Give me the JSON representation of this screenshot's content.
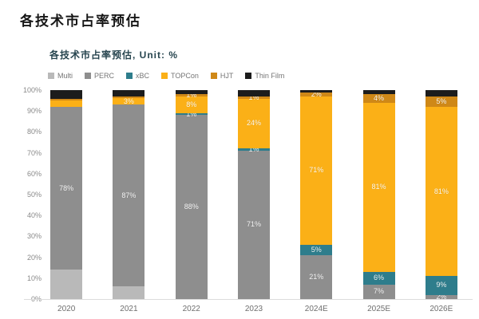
{
  "page": {
    "title": "各技术市占率预估"
  },
  "chart": {
    "subtitle": "各技术市占率预估, Unit: %"
  },
  "chart_data": {
    "type": "bar",
    "subtype": "stacked-percentage",
    "title": "各技术市占率预估, Unit: %",
    "unit": "%",
    "legend_position": "top",
    "grid": false,
    "ylim": [
      0,
      100
    ],
    "yticks": [
      "0%",
      "10%",
      "20%",
      "30%",
      "40%",
      "50%",
      "60%",
      "70%",
      "80%",
      "90%",
      "100%"
    ],
    "categories": [
      "2020",
      "2021",
      "2022",
      "2023",
      "2024E",
      "2025E",
      "2026E"
    ],
    "series": [
      {
        "name": "Multi",
        "color": "#b9b9b9",
        "values": [
          14,
          6,
          0,
          0,
          0,
          0,
          0
        ],
        "labels": [
          "",
          "",
          "",
          "",
          "",
          "",
          ""
        ]
      },
      {
        "name": "PERC",
        "color": "#8e8e8e",
        "values": [
          78,
          87,
          88,
          71,
          21,
          7,
          2
        ],
        "labels": [
          "78%",
          "87%",
          "88%",
          "71%",
          "21%",
          "7%",
          "2%"
        ]
      },
      {
        "name": "xBC",
        "color": "#2e7d8c",
        "values": [
          0,
          0,
          1,
          1,
          5,
          6,
          9
        ],
        "labels": [
          "",
          "",
          "1%",
          "1%",
          "5%",
          "6%",
          "9%"
        ]
      },
      {
        "name": "TOPCon",
        "color": "#fbb017",
        "values": [
          3,
          3,
          8,
          24,
          71,
          81,
          81
        ],
        "labels": [
          "",
          "3%",
          "8%",
          "24%",
          "71%",
          "81%",
          "81%"
        ]
      },
      {
        "name": "HJT",
        "color": "#cf8817",
        "values": [
          1,
          1,
          1,
          1,
          2,
          4,
          5
        ],
        "labels": [
          "",
          "",
          "1%",
          "1%",
          "2%",
          "4%",
          "5%"
        ]
      },
      {
        "name": "Thin Film",
        "color": "#1c1c1c",
        "values": [
          4,
          3,
          2,
          3,
          1,
          2,
          3
        ],
        "labels": [
          "",
          "",
          "",
          "",
          "",
          "",
          ""
        ]
      }
    ]
  }
}
